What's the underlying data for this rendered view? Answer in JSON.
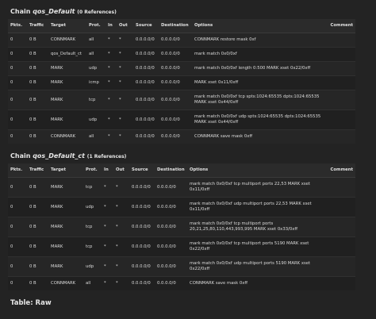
{
  "sections": [
    {
      "chain_prefix": "Chain",
      "chain_name": "qos_Default",
      "chain_refs": "(0 References)",
      "columns": [
        "Pkts.",
        "Traffic",
        "Target",
        "Prot.",
        "In",
        "Out",
        "Source",
        "Destination",
        "Options",
        "Comment"
      ],
      "rows": [
        [
          "0",
          "0 B",
          "CONNMARK",
          "all",
          "*",
          "*",
          "0.0.0.0/0",
          "0.0.0.0/0",
          "CONNMARK restore mask 0xf"
        ],
        [
          "0",
          "0 B",
          "qos_Default_ct",
          "all",
          "*",
          "*",
          "0.0.0.0/0",
          "0.0.0.0/0",
          "mark match 0x0/0xf"
        ],
        [
          "0",
          "0 B",
          "MARK",
          "udp",
          "*",
          "*",
          "0.0.0.0/0",
          "0.0.0.0/0",
          "mark match 0x0/0xf length 0:500 MARK xset 0x22/0xff"
        ],
        [
          "0",
          "0 B",
          "MARK",
          "icmp",
          "*",
          "*",
          "0.0.0.0/0",
          "0.0.0.0/0",
          "MARK xset 0x11/0xff"
        ],
        [
          "0",
          "0 B",
          "MARK",
          "tcp",
          "*",
          "*",
          "0.0.0.0/0",
          "0.0.0.0/0",
          "mark match 0x0/0xf tcp spts:1024:65535 dpts:1024:65535 MARK xset 0x44/0xff"
        ],
        [
          "0",
          "0 B",
          "MARK",
          "udp",
          "*",
          "*",
          "0.0.0.0/0",
          "0.0.0.0/0",
          "mark match 0x0/0xf udp spts:1024:65535 dpts:1024:65535 MARK xset 0x44/0xff"
        ],
        [
          "0",
          "0 B",
          "CONNMARK",
          "all",
          "*",
          "*",
          "0.0.0.0/0",
          "0.0.0.0/0",
          "CONNMARK save mask 0xff"
        ]
      ]
    },
    {
      "chain_prefix": "Chain",
      "chain_name": "qos_Default_ct",
      "chain_refs": "(1 References)",
      "columns": [
        "Pkts.",
        "Traffic",
        "Target",
        "Prot.",
        "In",
        "Out",
        "Source",
        "Destination",
        "Options",
        "Comment"
      ],
      "rows": [
        [
          "0",
          "0 B",
          "MARK",
          "tcp",
          "*",
          "*",
          "0.0.0.0/0",
          "0.0.0.0/0",
          "mark match 0x0/0xf tcp multiport ports 22,53 MARK xset 0x11/0xff"
        ],
        [
          "0",
          "0 B",
          "MARK",
          "udp",
          "*",
          "*",
          "0.0.0.0/0",
          "0.0.0.0/0",
          "mark match 0x0/0xf udp multiport ports 22,53 MARK xset 0x11/0xff"
        ],
        [
          "0",
          "0 B",
          "MARK",
          "tcp",
          "*",
          "*",
          "0.0.0.0/0",
          "0.0.0.0/0",
          "mark match 0x0/0xf tcp multiport ports 20,21,25,80,110,443,993,995 MARK xset 0x33/0xff"
        ],
        [
          "0",
          "0 B",
          "MARK",
          "tcp",
          "*",
          "*",
          "0.0.0.0/0",
          "0.0.0.0/0",
          "mark match 0x0/0xf tcp multiport ports 5190 MARK xset 0x22/0xff"
        ],
        [
          "0",
          "0 B",
          "MARK",
          "udp",
          "*",
          "*",
          "0.0.0.0/0",
          "0.0.0.0/0",
          "mark match 0x0/0xf udp multiport ports 5190 MARK xset 0x22/0xff"
        ],
        [
          "0",
          "0 B",
          "CONNMARK",
          "all",
          "*",
          "*",
          "0.0.0.0/0",
          "0.0.0.0/0",
          "CONNMARK save mask 0xff"
        ]
      ]
    }
  ],
  "table_heading": "Table: Raw"
}
